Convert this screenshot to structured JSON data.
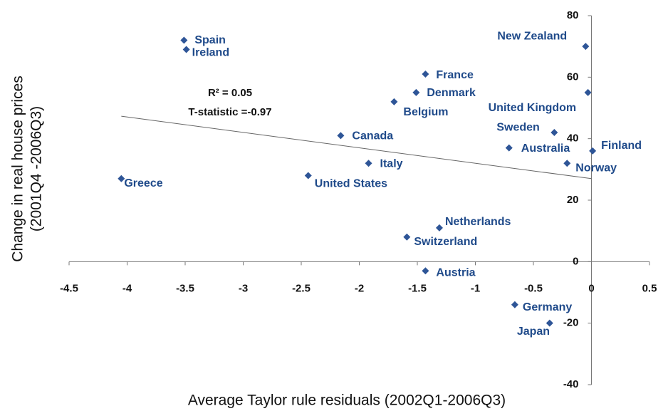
{
  "chart_data": {
    "type": "scatter",
    "x_label": "Average Taylor rule residuals (2002Q1-2006Q3)",
    "y_label": [
      "Change in real house prices",
      "(2001Q4 -2006Q3)"
    ],
    "annotations": [
      "R² = 0.05",
      "T-statistic =-0.97"
    ],
    "labels": [
      "Spain",
      "Ireland",
      "France",
      "Denmark",
      "Belgium",
      "Canada",
      "Italy",
      "United States",
      "Greece",
      "Netherlands",
      "Switzerland",
      "Austria",
      "Germany",
      "Japan",
      "New Zealand",
      "United Kingdom",
      "Sweden",
      "Australia",
      "Finland",
      "Norway"
    ],
    "x": [
      -3.51,
      -3.49,
      -1.43,
      -1.51,
      -1.7,
      -2.16,
      -1.92,
      -2.44,
      -4.05,
      -1.31,
      -1.59,
      -1.43,
      -0.66,
      -0.36,
      -0.05,
      -0.03,
      -0.32,
      -0.71,
      0.01,
      -0.21
    ],
    "values": [
      72,
      69,
      61,
      55,
      52,
      41,
      32,
      28,
      27,
      11,
      8,
      -3,
      -14,
      -20,
      70,
      55,
      42,
      37,
      36,
      32
    ],
    "color": "#2e5597",
    "label_color": "#1f4a8a",
    "trendline": {
      "x": [
        -4.05,
        0
      ],
      "y": [
        47.3,
        27
      ]
    },
    "xlim": [
      -4.5,
      0.5
    ],
    "xticks": [
      -4.5,
      -4,
      -3.5,
      -3,
      -2.5,
      -2,
      -1.5,
      -1,
      -0.5,
      0,
      0.5
    ],
    "ylim": [
      -40,
      80
    ],
    "yticks": [
      -40,
      -20,
      0,
      20,
      40,
      60,
      80
    ]
  }
}
